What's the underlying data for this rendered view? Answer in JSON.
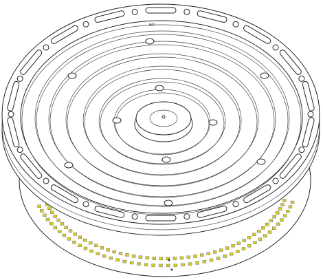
{
  "drawing": {
    "angle_label": "60°"
  }
}
